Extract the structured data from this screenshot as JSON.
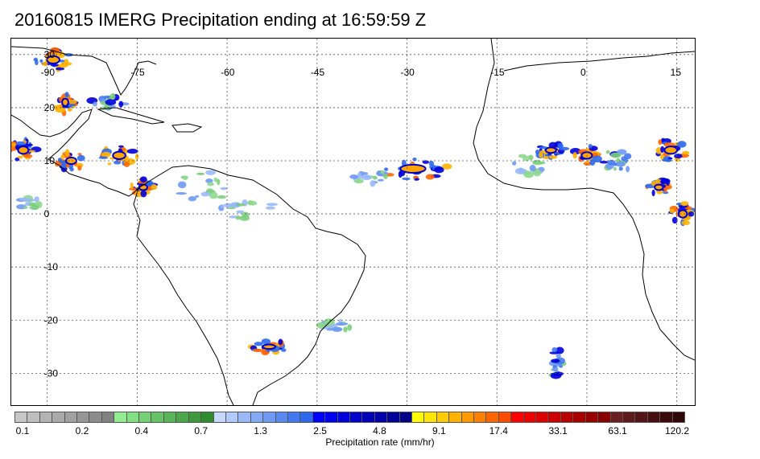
{
  "title": "20160815 IMERG Precipitation ending at 16:59:59 Z",
  "map": {
    "lon_range": [
      -96,
      18
    ],
    "lat_range": [
      -36,
      33
    ],
    "lon_ticks": [
      {
        "value": -90,
        "label": "-90"
      },
      {
        "value": -75,
        "label": "-75"
      },
      {
        "value": -60,
        "label": "-60"
      },
      {
        "value": -45,
        "label": "-45"
      },
      {
        "value": -30,
        "label": "-30"
      },
      {
        "value": -15,
        "label": "-15"
      },
      {
        "value": 0,
        "label": "0"
      },
      {
        "value": 15,
        "label": "15"
      }
    ],
    "lat_ticks": [
      {
        "value": 30,
        "label": "30"
      },
      {
        "value": 20,
        "label": "20"
      },
      {
        "value": 10,
        "label": "10"
      },
      {
        "value": 0,
        "label": "0"
      },
      {
        "value": -10,
        "label": "-10"
      },
      {
        "value": -20,
        "label": "-20"
      },
      {
        "value": -30,
        "label": "-30"
      }
    ],
    "grid": true,
    "coastline_color": "#000000",
    "rain_regions": [
      {
        "name": "itcz-central-atlantic",
        "lon": -29,
        "lat": 8.5,
        "rlon": 6,
        "rlat": 2.2,
        "intensity": "heavy"
      },
      {
        "name": "itcz-central-atlantic-west",
        "lon": -36,
        "lat": 7,
        "rlon": 3,
        "rlat": 1.5,
        "intensity": "light"
      },
      {
        "name": "west-africa-guinea",
        "lon": -10,
        "lat": 9,
        "rlon": 3,
        "rlat": 2,
        "intensity": "light"
      },
      {
        "name": "west-africa-mali",
        "lon": -6,
        "lat": 12,
        "rlon": 2.5,
        "rlat": 1.5,
        "intensity": "heavy"
      },
      {
        "name": "west-africa-burkina",
        "lon": 0,
        "lat": 11,
        "rlon": 2.5,
        "rlat": 1.8,
        "intensity": "heavy"
      },
      {
        "name": "west-africa-niger",
        "lon": 5,
        "lat": 10,
        "rlon": 3,
        "rlat": 2,
        "intensity": "moderate"
      },
      {
        "name": "chad-lake",
        "lon": 14,
        "lat": 12,
        "rlon": 3,
        "rlat": 2,
        "intensity": "heavy"
      },
      {
        "name": "cameroon",
        "lon": 12,
        "lat": 5,
        "rlon": 2,
        "rlat": 1.5,
        "intensity": "heavy"
      },
      {
        "name": "congo",
        "lon": 16,
        "lat": 0,
        "rlon": 2,
        "rlat": 2,
        "intensity": "heavy"
      },
      {
        "name": "central-america-west",
        "lon": -94,
        "lat": 12,
        "rlon": 2.5,
        "rlat": 2,
        "intensity": "heavy"
      },
      {
        "name": "central-america-south",
        "lon": -86,
        "lat": 10,
        "rlon": 2.5,
        "rlat": 1.8,
        "intensity": "heavy"
      },
      {
        "name": "caribbean-panama",
        "lon": -78,
        "lat": 11,
        "rlon": 3,
        "rlat": 2,
        "intensity": "heavy"
      },
      {
        "name": "colombia",
        "lon": -74,
        "lat": 5,
        "rlon": 2,
        "rlat": 1.5,
        "intensity": "heavy"
      },
      {
        "name": "gulf-of-mexico",
        "lon": -89,
        "lat": 29,
        "rlon": 3,
        "rlat": 2,
        "intensity": "heavy"
      },
      {
        "name": "yucatan",
        "lon": -87,
        "lat": 21,
        "rlon": 1.5,
        "rlat": 2,
        "intensity": "heavy"
      },
      {
        "name": "cuba",
        "lon": -80,
        "lat": 21,
        "rlon": 3,
        "rlat": 1.2,
        "intensity": "moderate"
      },
      {
        "name": "venezuela",
        "lon": -64,
        "lat": 5,
        "rlon": 4,
        "rlat": 3,
        "intensity": "light"
      },
      {
        "name": "amazon-north",
        "lon": -56,
        "lat": 1,
        "rlon": 5,
        "rlat": 2,
        "intensity": "light"
      },
      {
        "name": "southern-brazil",
        "lon": -53,
        "lat": -25,
        "rlon": 3,
        "rlat": 1.2,
        "intensity": "heavy"
      },
      {
        "name": "south-atlantic-front",
        "lon": -42,
        "lat": -21,
        "rlon": 3,
        "rlat": 1,
        "intensity": "light"
      },
      {
        "name": "south-atlantic-east",
        "lon": -5,
        "lat": -28,
        "rlon": 1,
        "rlat": 3,
        "intensity": "moderate"
      },
      {
        "name": "east-pacific",
        "lon": -93,
        "lat": 2,
        "rlon": 2,
        "rlat": 1,
        "intensity": "light"
      }
    ]
  },
  "colorbar": {
    "title": "Precipitation rate (mm/hr)",
    "labels": [
      "0.1",
      "0.2",
      "0.4",
      "0.7",
      "1.3",
      "2.5",
      "4.8",
      "9.1",
      "17.4",
      "33.1",
      "63.1",
      "120.2"
    ],
    "colors": [
      "#c8c8c8",
      "#bebebe",
      "#b4b4b4",
      "#aaaaaa",
      "#a0a0a0",
      "#969696",
      "#8c8c8c",
      "#828282",
      "#90ee90",
      "#82e082",
      "#74d274",
      "#66c466",
      "#58b658",
      "#4aa84a",
      "#3c9a3c",
      "#2e8c2e",
      "#c6d9fd",
      "#b0c9fb",
      "#9ab9f9",
      "#84a9f7",
      "#6e99f5",
      "#5889f3",
      "#4279f1",
      "#2c69ef",
      "#0000ff",
      "#0000ee",
      "#0000dd",
      "#0000cc",
      "#0000bb",
      "#0000aa",
      "#000099",
      "#000088",
      "#ffff00",
      "#ffe600",
      "#ffcc00",
      "#ffb300",
      "#ff9900",
      "#ff8000",
      "#ff6600",
      "#ff4d00",
      "#ff0000",
      "#ee0000",
      "#dd0000",
      "#cc0000",
      "#bb0000",
      "#aa0000",
      "#990000",
      "#880000",
      "#6b1f1f",
      "#5f1a1a",
      "#531515",
      "#471010",
      "#3b0b0b",
      "#300707"
    ]
  }
}
